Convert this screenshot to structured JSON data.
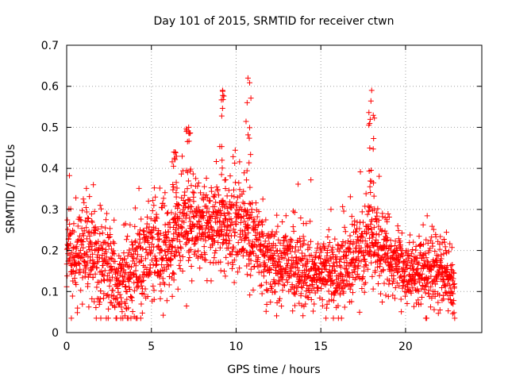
{
  "chart_data": {
    "type": "scatter",
    "title": "Day 101 of 2015, SRMTID for receiver ctwn",
    "xlabel": "GPS time / hours",
    "ylabel": "SRMTID / TECUs",
    "xlim": [
      0,
      24.5
    ],
    "ylim": [
      0,
      0.7
    ],
    "xticks": [
      0,
      5,
      10,
      15,
      20
    ],
    "xtick_labels": [
      "0",
      "5",
      "10",
      "15",
      "20"
    ],
    "yticks": [
      0,
      0.1,
      0.2,
      0.3,
      0.4,
      0.5,
      0.6,
      0.7
    ],
    "ytick_labels": [
      "0",
      "0.1",
      "0.2",
      "0.3",
      "0.4",
      "0.5",
      "0.6",
      "0.7"
    ],
    "grid": true,
    "marker": "+",
    "color": "#ff0000",
    "x_range_observed": [
      0,
      22.9
    ],
    "envelope": {
      "x": [
        0,
        1,
        2,
        3,
        4,
        5,
        6,
        7,
        8,
        9,
        10,
        11,
        12,
        13,
        14,
        15,
        16,
        17,
        18,
        19,
        20,
        21,
        22,
        22.9
      ],
      "center": [
        0.19,
        0.2,
        0.17,
        0.14,
        0.14,
        0.21,
        0.21,
        0.26,
        0.26,
        0.26,
        0.27,
        0.24,
        0.17,
        0.17,
        0.15,
        0.14,
        0.16,
        0.19,
        0.23,
        0.18,
        0.14,
        0.15,
        0.15,
        0.11
      ],
      "spread": [
        0.07,
        0.08,
        0.09,
        0.07,
        0.08,
        0.08,
        0.08,
        0.08,
        0.06,
        0.07,
        0.08,
        0.07,
        0.06,
        0.06,
        0.06,
        0.06,
        0.06,
        0.07,
        0.07,
        0.06,
        0.05,
        0.06,
        0.06,
        0.05
      ]
    },
    "peaks": [
      {
        "x": 6.4,
        "y": 0.44
      },
      {
        "x": 7.2,
        "y": 0.5
      },
      {
        "x": 9.2,
        "y": 0.59
      },
      {
        "x": 10.7,
        "y": 0.62
      },
      {
        "x": 18.0,
        "y": 0.59
      }
    ],
    "point_count": 2400
  }
}
